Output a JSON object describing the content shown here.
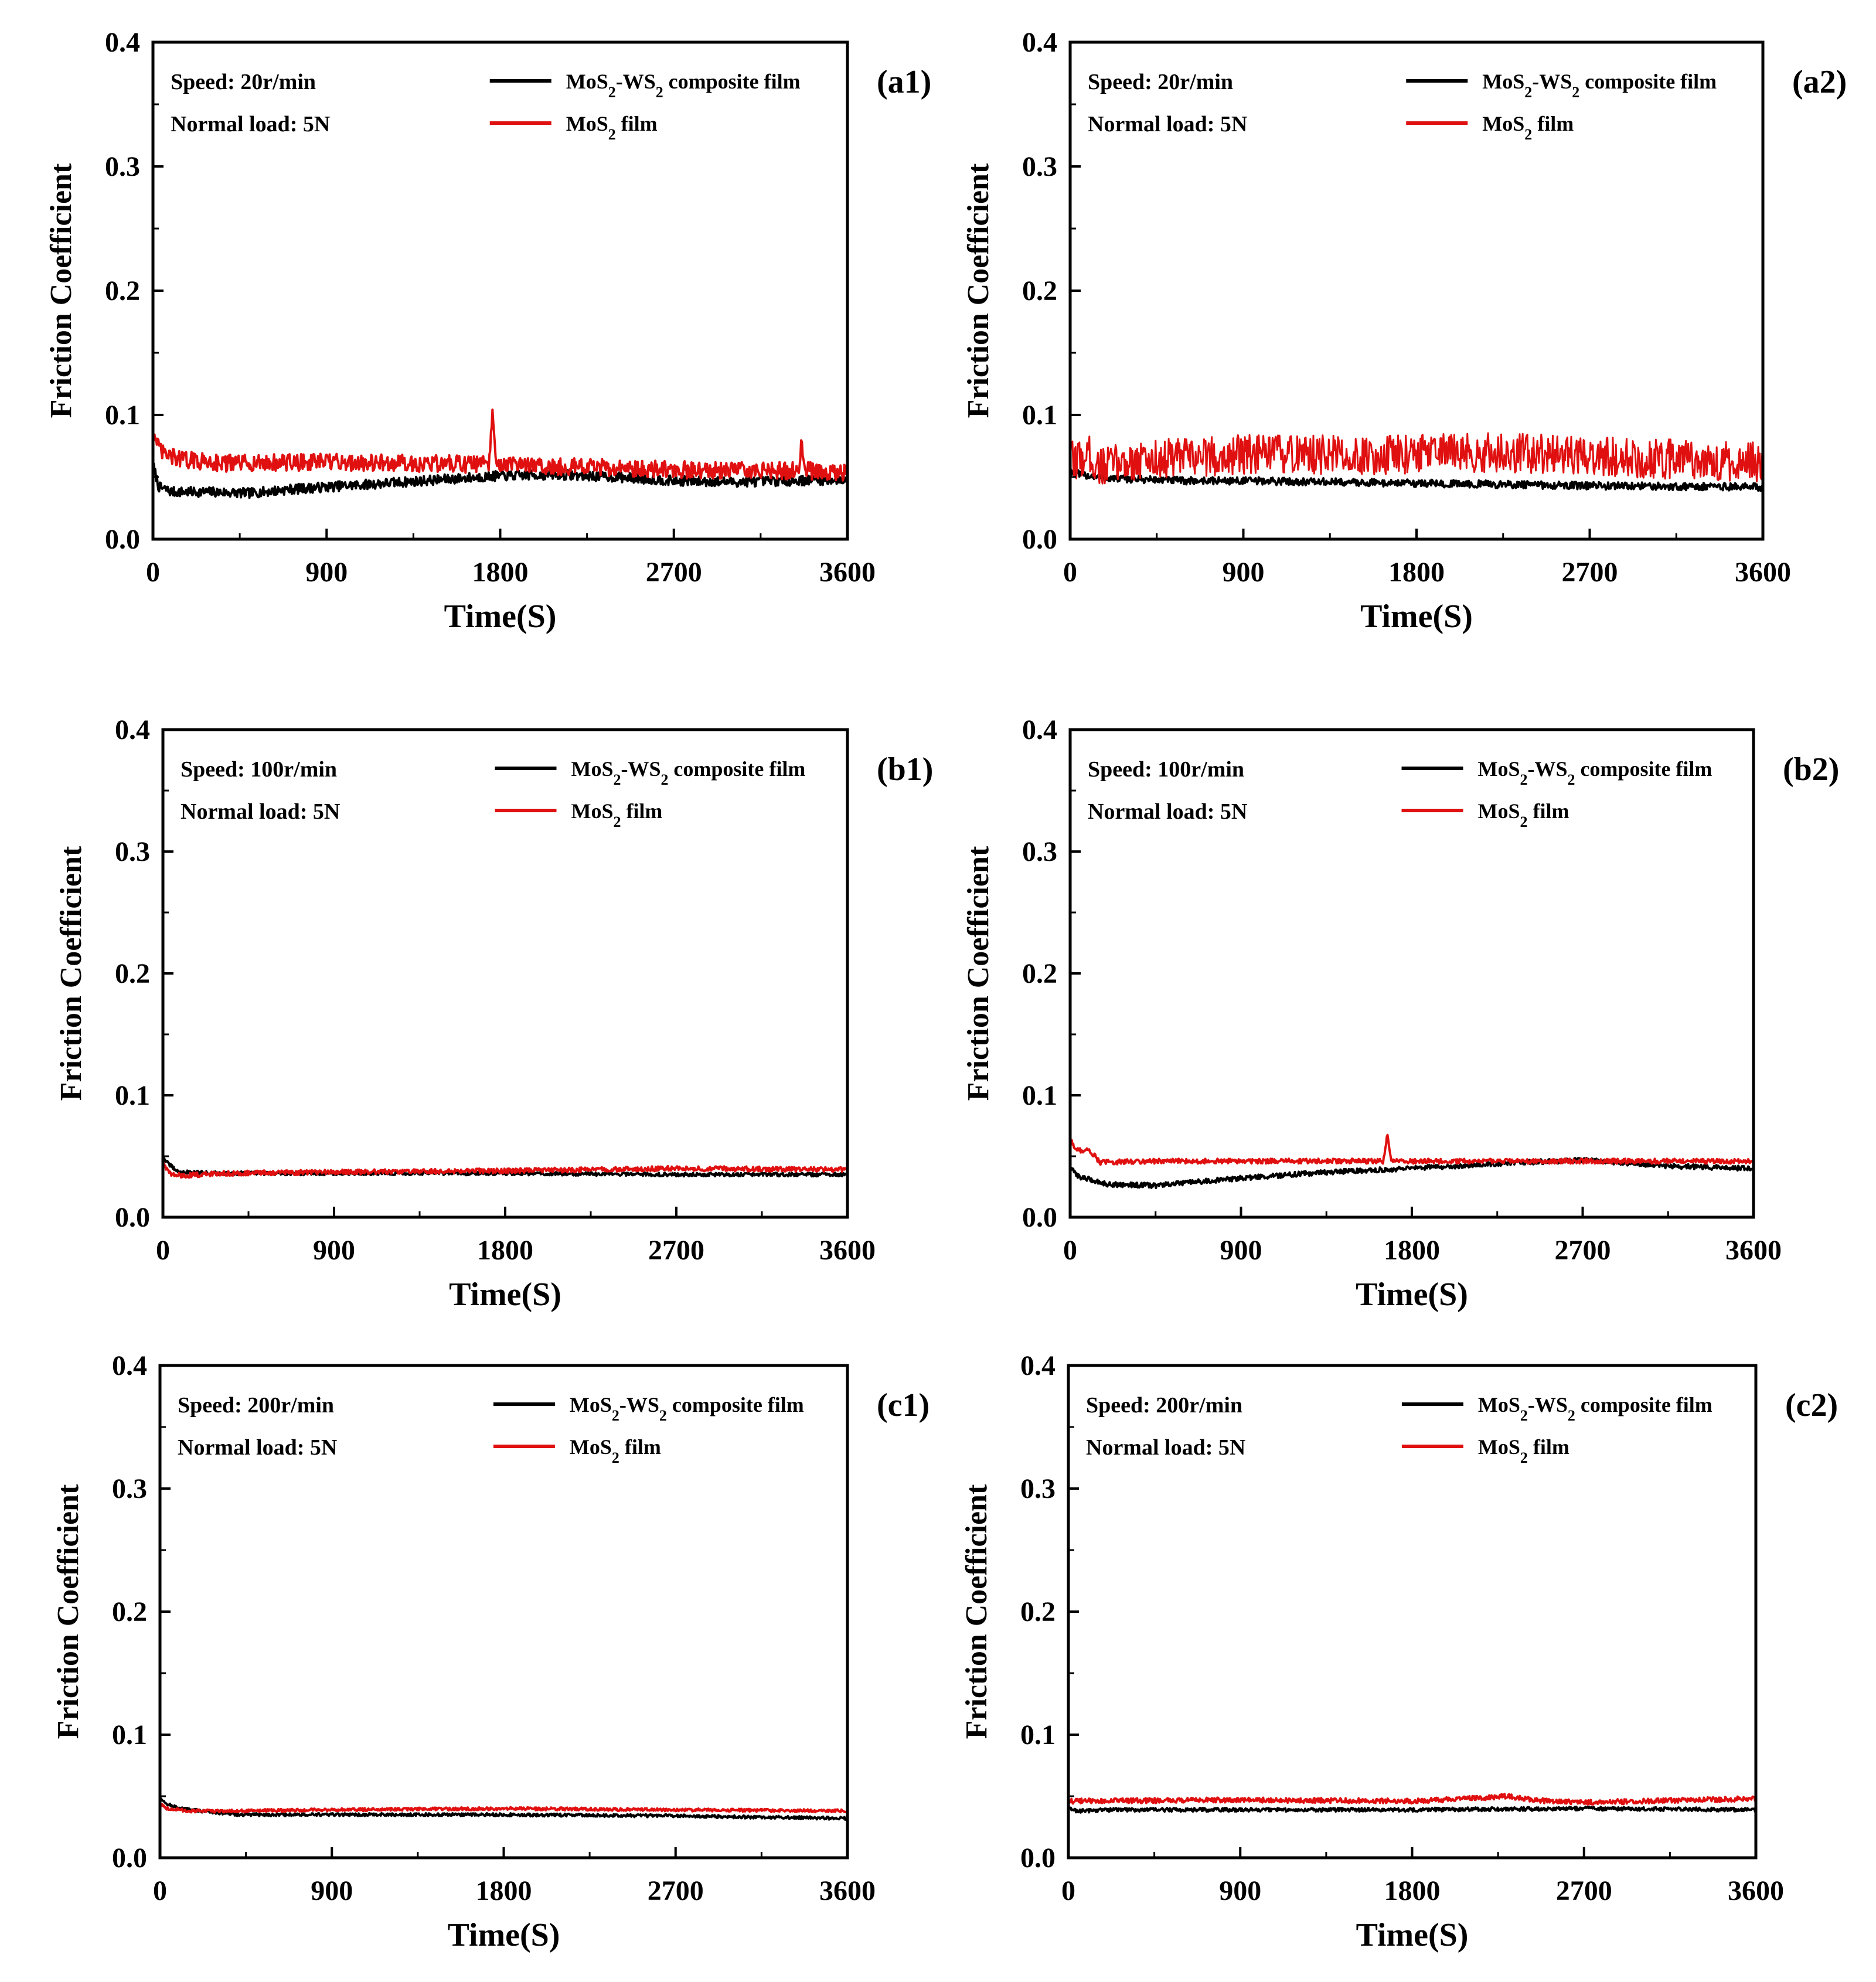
{
  "figure": {
    "series_names": [
      "MoS2-WS2 composite film",
      "MoS2 film"
    ],
    "series_colors": {
      "composite": "#000000",
      "mos2": "#e01010"
    }
  },
  "chart_data": [
    {
      "id": "a1",
      "type": "line",
      "panel_label": "(a1)",
      "speed_label": "Speed:  20r/min",
      "load_label": "Normal load:  5N",
      "xlabel": "Time(S)",
      "ylabel": "Friction Coefficient",
      "xlim": [
        0,
        3600
      ],
      "ylim": [
        0,
        0.4
      ],
      "xticks": [
        "0",
        "900",
        "1800",
        "2700",
        "3600"
      ],
      "yticks": [
        "0.0",
        "0.1",
        "0.2",
        "0.3",
        "0.4"
      ],
      "legend": [
        "MoS2-WS2 composite film",
        "MoS2 film"
      ],
      "series": [
        {
          "name": "MoS2-WS2 composite film",
          "color": "#000000",
          "noise": 0.004,
          "x": [
            0,
            30,
            100,
            300,
            500,
            700,
            900,
            1200,
            1500,
            1800,
            2100,
            2400,
            2700,
            3000,
            3300,
            3600
          ],
          "y": [
            0.06,
            0.042,
            0.038,
            0.038,
            0.037,
            0.04,
            0.042,
            0.045,
            0.048,
            0.051,
            0.052,
            0.05,
            0.047,
            0.046,
            0.047,
            0.048
          ]
        },
        {
          "name": "MoS2 film",
          "color": "#e01010",
          "noise": 0.007,
          "x": [
            0,
            20,
            60,
            150,
            400,
            900,
            1350,
            1740,
            1760,
            1780,
            2200,
            2700,
            3150,
            3350,
            3360,
            3380,
            3600
          ],
          "y": [
            0.09,
            0.075,
            0.068,
            0.064,
            0.061,
            0.062,
            0.061,
            0.06,
            0.098,
            0.06,
            0.058,
            0.056,
            0.055,
            0.055,
            0.082,
            0.055,
            0.054
          ]
        }
      ]
    },
    {
      "id": "a2",
      "type": "line",
      "panel_label": "(a2)",
      "speed_label": "Speed:  20r/min",
      "load_label": "Normal load:  5N",
      "xlabel": "Time(S)",
      "ylabel": "Friction Coefficient",
      "xlim": [
        0,
        3600
      ],
      "ylim": [
        0,
        0.4
      ],
      "xticks": [
        "0",
        "900",
        "1800",
        "2700",
        "3600"
      ],
      "yticks": [
        "0.0",
        "0.1",
        "0.2",
        "0.3",
        "0.4"
      ],
      "legend": [
        "MoS2-WS2 composite film",
        "MoS2 film"
      ],
      "series": [
        {
          "name": "MoS2-WS2 composite film",
          "color": "#000000",
          "noise": 0.003,
          "x": [
            0,
            50,
            200,
            600,
            900,
            1800,
            2700,
            3600
          ],
          "y": [
            0.055,
            0.052,
            0.049,
            0.047,
            0.047,
            0.045,
            0.043,
            0.042
          ]
        },
        {
          "name": "MoS2 film",
          "color": "#e01010",
          "noise": 0.016,
          "x": [
            0,
            100,
            150,
            300,
            600,
            900,
            1200,
            1800,
            2200,
            2700,
            3200,
            3600
          ],
          "y": [
            0.062,
            0.068,
            0.058,
            0.063,
            0.066,
            0.068,
            0.068,
            0.068,
            0.07,
            0.067,
            0.064,
            0.062
          ]
        }
      ]
    },
    {
      "id": "b1",
      "type": "line",
      "panel_label": "(b1)",
      "speed_label": "Speed:  100r/min",
      "load_label": "Normal load:  5N",
      "xlabel": "Time(S)",
      "ylabel": "Friction Coefficient",
      "xlim": [
        0,
        3600
      ],
      "ylim": [
        0,
        0.4
      ],
      "xticks": [
        "0",
        "900",
        "1800",
        "2700",
        "3600"
      ],
      "yticks": [
        "0.0",
        "0.1",
        "0.2",
        "0.3",
        "0.4"
      ],
      "legend": [
        "MoS2-WS2 composite film",
        "MoS2 film"
      ],
      "series": [
        {
          "name": "MoS2-WS2 composite film",
          "color": "#000000",
          "noise": 0.0015,
          "x": [
            0,
            20,
            80,
            300,
            900,
            1800,
            2700,
            3600
          ],
          "y": [
            0.05,
            0.045,
            0.037,
            0.036,
            0.036,
            0.036,
            0.035,
            0.035
          ]
        },
        {
          "name": "MoS2 film",
          "color": "#e01010",
          "noise": 0.002,
          "x": [
            0,
            40,
            100,
            300,
            900,
            1800,
            2700,
            3600
          ],
          "y": [
            0.045,
            0.035,
            0.034,
            0.036,
            0.037,
            0.038,
            0.04,
            0.039
          ]
        }
      ]
    },
    {
      "id": "b2",
      "type": "line",
      "panel_label": "(b2)",
      "speed_label": "Speed:  100r/min",
      "load_label": "Normal load:  5N",
      "xlabel": "Time(S)",
      "ylabel": "Friction Coefficient",
      "xlim": [
        0,
        3600
      ],
      "ylim": [
        0,
        0.4
      ],
      "xticks": [
        "0",
        "900",
        "1800",
        "2700",
        "3600"
      ],
      "yticks": [
        "0.0",
        "0.1",
        "0.2",
        "0.3",
        "0.4"
      ],
      "legend": [
        "MoS2-WS2 composite film",
        "MoS2 film"
      ],
      "series": [
        {
          "name": "MoS2-WS2 composite film",
          "color": "#000000",
          "noise": 0.002,
          "x": [
            0,
            50,
            200,
            450,
            900,
            1350,
            1800,
            2250,
            2700,
            3150,
            3600
          ],
          "y": [
            0.04,
            0.033,
            0.027,
            0.026,
            0.032,
            0.037,
            0.04,
            0.044,
            0.047,
            0.042,
            0.04
          ]
        },
        {
          "name": "MoS2 film",
          "color": "#e01010",
          "noise": 0.002,
          "x": [
            0,
            30,
            100,
            160,
            400,
            900,
            1650,
            1670,
            1690,
            1800,
            2700,
            3600
          ],
          "y": [
            0.065,
            0.055,
            0.055,
            0.045,
            0.046,
            0.046,
            0.046,
            0.068,
            0.046,
            0.046,
            0.046,
            0.046
          ]
        }
      ]
    },
    {
      "id": "c1",
      "type": "line",
      "panel_label": "(c1)",
      "speed_label": "Speed:  200r/min",
      "load_label": "Normal load:  5N",
      "xlabel": "Time(S)",
      "ylabel": "Friction Coefficient",
      "xlim": [
        0,
        3600
      ],
      "ylim": [
        0,
        0.4
      ],
      "xticks": [
        "0",
        "900",
        "1800",
        "2700",
        "3600"
      ],
      "yticks": [
        "0.0",
        "0.1",
        "0.2",
        "0.3",
        "0.4"
      ],
      "legend": [
        "MoS2-WS2 composite film",
        "MoS2 film"
      ],
      "series": [
        {
          "name": "MoS2-WS2 composite film",
          "color": "#000000",
          "noise": 0.0012,
          "x": [
            0,
            20,
            100,
            400,
            900,
            1800,
            2700,
            3600
          ],
          "y": [
            0.05,
            0.045,
            0.04,
            0.035,
            0.035,
            0.035,
            0.034,
            0.032
          ]
        },
        {
          "name": "MoS2 film",
          "color": "#e01010",
          "noise": 0.0012,
          "x": [
            0,
            40,
            150,
            400,
            900,
            1800,
            2700,
            3600
          ],
          "y": [
            0.044,
            0.04,
            0.038,
            0.038,
            0.039,
            0.04,
            0.039,
            0.038
          ]
        }
      ]
    },
    {
      "id": "c2",
      "type": "line",
      "panel_label": "(c2)",
      "speed_label": "Speed:  200r/min",
      "load_label": "Normal load:  5N",
      "xlabel": "Time(S)",
      "ylabel": "Friction Coefficient",
      "xlim": [
        0,
        3600
      ],
      "ylim": [
        0,
        0.4
      ],
      "xticks": [
        "0",
        "900",
        "1800",
        "2700",
        "3600"
      ],
      "yticks": [
        "0.0",
        "0.1",
        "0.2",
        "0.3",
        "0.4"
      ],
      "legend": [
        "MoS2-WS2 composite film",
        "MoS2 film"
      ],
      "series": [
        {
          "name": "MoS2-WS2 composite film",
          "color": "#000000",
          "noise": 0.0015,
          "x": [
            0,
            50,
            200,
            900,
            1800,
            2700,
            3600
          ],
          "y": [
            0.04,
            0.038,
            0.039,
            0.039,
            0.039,
            0.04,
            0.039
          ]
        },
        {
          "name": "MoS2 film",
          "color": "#e01010",
          "noise": 0.002,
          "x": [
            0,
            900,
            1800,
            2100,
            2300,
            2500,
            2700,
            3600
          ],
          "y": [
            0.046,
            0.047,
            0.046,
            0.048,
            0.05,
            0.046,
            0.045,
            0.048
          ]
        }
      ]
    }
  ]
}
